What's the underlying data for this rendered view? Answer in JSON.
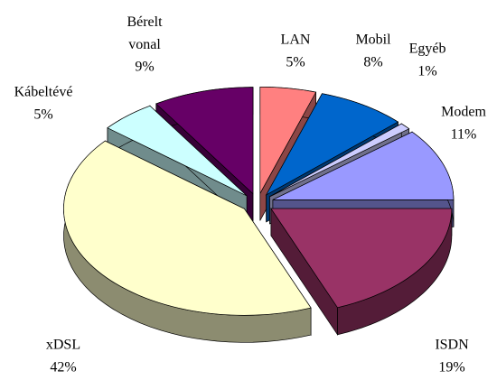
{
  "chart_data": {
    "type": "pie",
    "categories": [
      "LAN",
      "Mobil",
      "Egyéb",
      "Modem",
      "ISDN",
      "xDSL",
      "Kábeltévé",
      "Bérelt vonal"
    ],
    "values": [
      5,
      8,
      1,
      11,
      19,
      42,
      5,
      9
    ],
    "value_labels": [
      "5%",
      "8%",
      "1%",
      "11%",
      "19%",
      "42%",
      "5%",
      "9%"
    ],
    "colors": [
      "#ff8080",
      "#0066cc",
      "#ccccff",
      "#9999ff",
      "#993366",
      "#ffffcc",
      "#ccffff",
      "#660066"
    ]
  }
}
